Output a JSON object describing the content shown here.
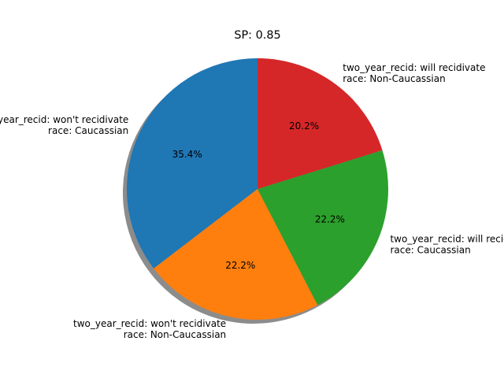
{
  "chart_data": {
    "type": "pie",
    "title": "SP: 0.85",
    "slices": [
      {
        "label": [
          "two_year_recid: won't recidivate",
          "race: Caucassian"
        ],
        "value": 35.4,
        "pct_label": "35.4%",
        "color": "#1f77b4"
      },
      {
        "label": [
          "two_year_recid: won't recidivate",
          "race: Non-Caucassian"
        ],
        "value": 22.2,
        "pct_label": "22.2%",
        "color": "#ff7f0e"
      },
      {
        "label": [
          "two_year_recid: will recidivate",
          "race: Caucassian"
        ],
        "value": 22.2,
        "pct_label": "22.2%",
        "color": "#2ca02c"
      },
      {
        "label": [
          "two_year_recid: will recidivate",
          "race: Non-Caucassian"
        ],
        "value": 20.2,
        "pct_label": "20.2%",
        "color": "#d62728"
      }
    ],
    "start_angle": 90,
    "direction": "counterclockwise",
    "shadow": true,
    "legend": "none"
  }
}
